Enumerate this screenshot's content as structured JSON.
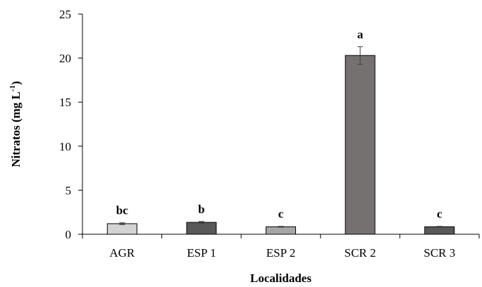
{
  "chart_data": {
    "type": "bar",
    "categories": [
      "AGR",
      "ESP 1",
      "ESP 2",
      "SCR 2",
      "SCR 3"
    ],
    "values": [
      1.2,
      1.35,
      0.85,
      20.3,
      0.85
    ],
    "errors": [
      0.1,
      0.1,
      0.05,
      1.0,
      0.05
    ],
    "significance": [
      "bc",
      "b",
      "c",
      "a",
      "c"
    ],
    "bar_colors": [
      "#d3d3d3",
      "#595959",
      "#a6a6a6",
      "#767171",
      "#595959"
    ],
    "xlabel": "Localidades",
    "ylabel_main": "Nitratos (mg L",
    "ylabel_sup": "-1",
    "ylabel_close": ")",
    "ylim": [
      0,
      25
    ],
    "yticks": [
      "0",
      "5",
      "10",
      "15",
      "20",
      "25"
    ],
    "grid": false
  }
}
